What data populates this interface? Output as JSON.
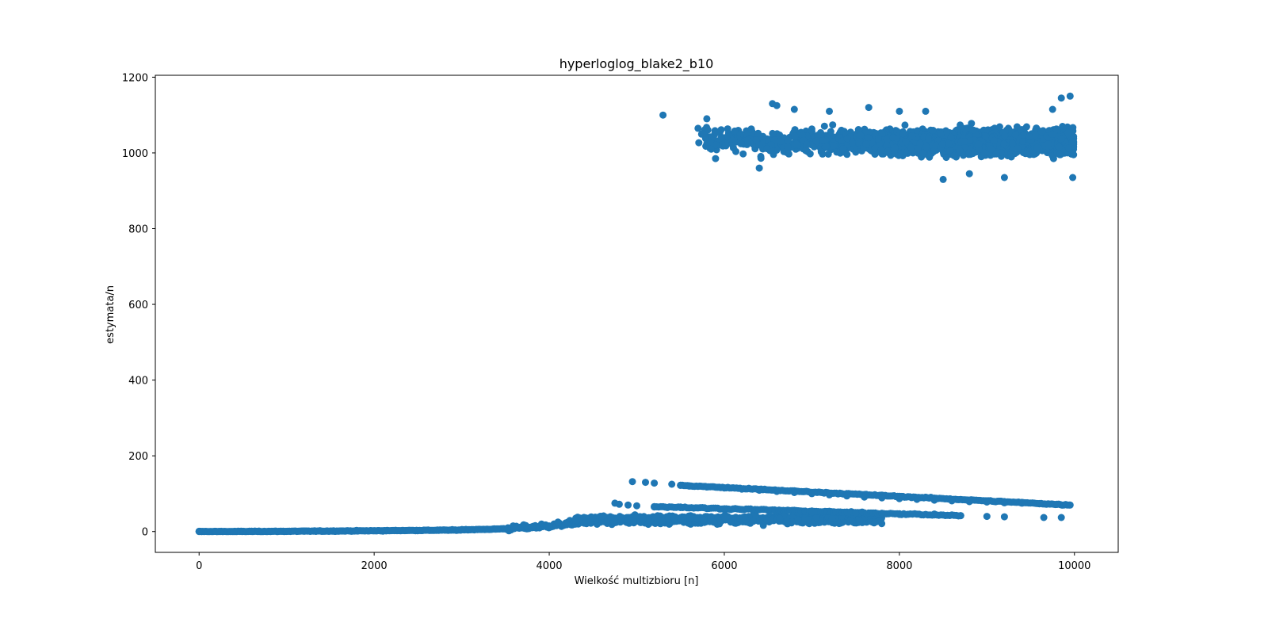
{
  "chart_data": {
    "type": "scatter",
    "title": "hyperloglog_blake2_b10",
    "xlabel": "Wielkość multizbioru [n]",
    "ylabel": "estymata/n",
    "xlim": [
      -500,
      10500
    ],
    "ylim": [
      -55,
      1205
    ],
    "x_ticks": [
      0,
      2000,
      4000,
      6000,
      8000,
      10000
    ],
    "x_tick_labels": [
      "0",
      "2000",
      "4000",
      "6000",
      "8000",
      "10000"
    ],
    "y_ticks": [
      0,
      200,
      400,
      600,
      800,
      1000,
      1200
    ],
    "y_tick_labels": [
      "0",
      "200",
      "400",
      "600",
      "800",
      "1000",
      "1200"
    ],
    "grid": false,
    "marker_color": "#1f77b4",
    "series": [
      {
        "values_description_points": [
          [
            0,
            0
          ],
          [
            200,
            0
          ],
          [
            400,
            0
          ],
          [
            600,
            0.2
          ],
          [
            800,
            0.3
          ],
          [
            1000,
            0.4
          ],
          [
            1200,
            0.6
          ],
          [
            1400,
            0.9
          ],
          [
            1600,
            1.2
          ],
          [
            1800,
            1.6
          ],
          [
            2000,
            2
          ],
          [
            2200,
            2.5
          ],
          [
            2400,
            3
          ],
          [
            2600,
            3.6
          ],
          [
            2800,
            4.3
          ],
          [
            3000,
            5
          ],
          [
            3200,
            6
          ],
          [
            3400,
            7
          ],
          [
            3600,
            9
          ],
          [
            3800,
            12
          ],
          [
            4000,
            15
          ],
          [
            4100,
            25
          ],
          [
            4200,
            18
          ],
          [
            4300,
            30
          ],
          [
            4400,
            22
          ],
          [
            4500,
            35
          ],
          [
            4600,
            40
          ],
          [
            4700,
            38
          ],
          [
            4750,
            75
          ],
          [
            4800,
            72
          ],
          [
            4900,
            70
          ],
          [
            4950,
            132
          ],
          [
            5000,
            68
          ],
          [
            5100,
            130
          ],
          [
            5200,
            128
          ],
          [
            5200,
            66
          ],
          [
            5400,
            125
          ],
          [
            5500,
            122
          ],
          [
            5600,
            120
          ],
          [
            5800,
            118
          ],
          [
            6000,
            115
          ],
          [
            6200,
            112
          ],
          [
            6400,
            109
          ],
          [
            6600,
            106
          ],
          [
            6800,
            103
          ],
          [
            7000,
            100
          ],
          [
            7200,
            97
          ],
          [
            7400,
            94
          ],
          [
            7600,
            91
          ],
          [
            7800,
            89
          ],
          [
            8000,
            87
          ],
          [
            8200,
            85
          ],
          [
            8400,
            83
          ],
          [
            8600,
            81
          ],
          [
            8800,
            79
          ],
          [
            9000,
            78
          ],
          [
            9200,
            76
          ],
          [
            9400,
            75
          ],
          [
            9600,
            74
          ],
          [
            9800,
            72
          ],
          [
            9950,
            70
          ],
          [
            5500,
            65
          ],
          [
            6000,
            60
          ],
          [
            6500,
            56
          ],
          [
            7000,
            52
          ],
          [
            7500,
            49
          ],
          [
            8000,
            47
          ],
          [
            8400,
            44
          ],
          [
            8700,
            42
          ],
          [
            9000,
            40
          ],
          [
            9200,
            39
          ],
          [
            9650,
            37
          ],
          [
            9850,
            37
          ],
          [
            5300,
            1100
          ],
          [
            5700,
            1065
          ],
          [
            5800,
            1090
          ],
          [
            5850,
            1010
          ],
          [
            5900,
            985
          ],
          [
            6400,
            960
          ],
          [
            6550,
            1130
          ],
          [
            6600,
            1125
          ],
          [
            6800,
            1115
          ],
          [
            7200,
            1110
          ],
          [
            7650,
            1120
          ],
          [
            8000,
            1110
          ],
          [
            8300,
            1110
          ],
          [
            8500,
            930
          ],
          [
            8800,
            945
          ],
          [
            9200,
            935
          ],
          [
            9750,
            1115
          ],
          [
            9850,
            1145
          ],
          [
            9950,
            1150
          ],
          [
            9980,
            935
          ]
        ]
      }
    ]
  }
}
